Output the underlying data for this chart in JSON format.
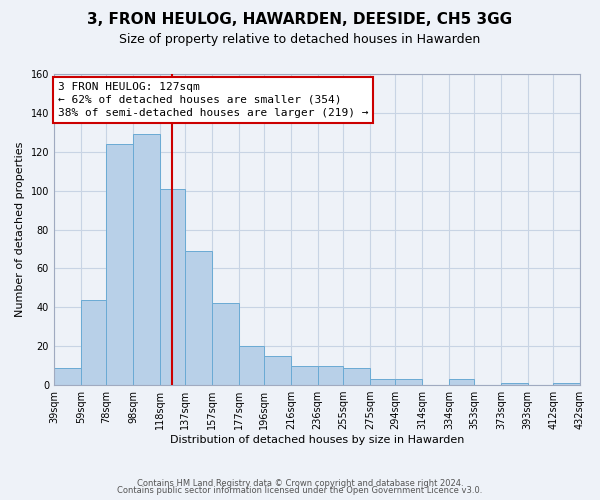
{
  "title": "3, FRON HEULOG, HAWARDEN, DEESIDE, CH5 3GG",
  "subtitle": "Size of property relative to detached houses in Hawarden",
  "xlabel": "Distribution of detached houses by size in Hawarden",
  "ylabel": "Number of detached properties",
  "bar_edges": [
    39,
    59,
    78,
    98,
    118,
    137,
    157,
    177,
    196,
    216,
    236,
    255,
    275,
    294,
    314,
    334,
    353,
    373,
    393,
    412,
    432
  ],
  "bar_heights": [
    9,
    44,
    124,
    129,
    101,
    69,
    42,
    20,
    15,
    10,
    10,
    9,
    3,
    3,
    0,
    3,
    0,
    1,
    0,
    1
  ],
  "bar_color": "#b8d0e8",
  "bar_edge_color": "#6aaad4",
  "vline_x": 127,
  "vline_color": "#cc0000",
  "annotation_text": "3 FRON HEULOG: 127sqm\n← 62% of detached houses are smaller (354)\n38% of semi-detached houses are larger (219) →",
  "annotation_box_color": "#ffffff",
  "annotation_box_edge": "#cc0000",
  "ylim": [
    0,
    160
  ],
  "yticks": [
    0,
    20,
    40,
    60,
    80,
    100,
    120,
    140,
    160
  ],
  "xtick_labels": [
    "39sqm",
    "59sqm",
    "78sqm",
    "98sqm",
    "118sqm",
    "137sqm",
    "157sqm",
    "177sqm",
    "196sqm",
    "216sqm",
    "236sqm",
    "255sqm",
    "275sqm",
    "294sqm",
    "314sqm",
    "334sqm",
    "353sqm",
    "373sqm",
    "393sqm",
    "412sqm",
    "432sqm"
  ],
  "footer_line1": "Contains HM Land Registry data © Crown copyright and database right 2024.",
  "footer_line2": "Contains public sector information licensed under the Open Government Licence v3.0.",
  "grid_color": "#c8d4e4",
  "background_color": "#eef2f8",
  "title_fontsize": 11,
  "subtitle_fontsize": 9,
  "ylabel_fontsize": 8,
  "xlabel_fontsize": 8,
  "tick_fontsize": 7,
  "annotation_fontsize": 8,
  "footer_fontsize": 6
}
